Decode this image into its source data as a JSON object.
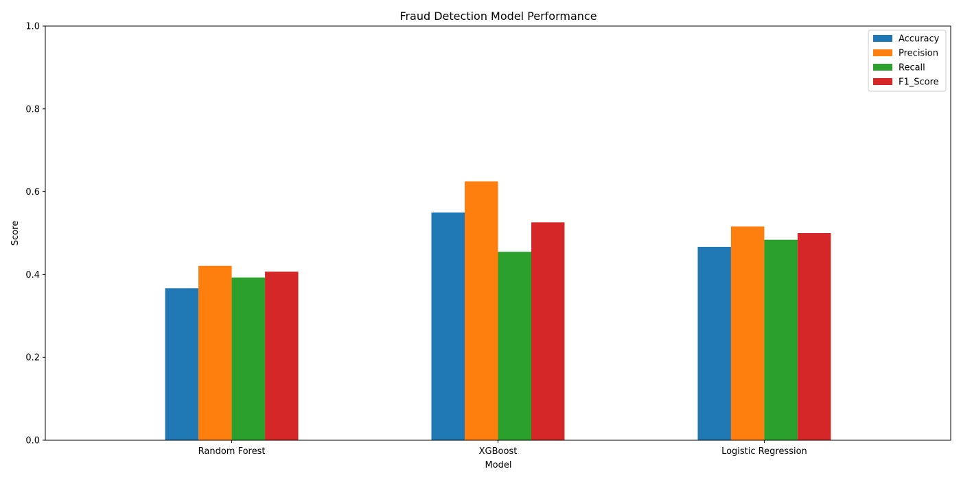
{
  "chart_data": {
    "type": "bar",
    "title": "Fraud Detection Model Performance",
    "xlabel": "Model",
    "ylabel": "Score",
    "categories": [
      "Random Forest",
      "XGBoost",
      "Logistic Regression"
    ],
    "series": [
      {
        "name": "Accuracy",
        "color": "#1f77b4",
        "values": [
          0.367,
          0.55,
          0.467
        ]
      },
      {
        "name": "Precision",
        "color": "#ff7f0e",
        "values": [
          0.421,
          0.625,
          0.516
        ]
      },
      {
        "name": "Recall",
        "color": "#2ca02c",
        "values": [
          0.393,
          0.455,
          0.484
        ]
      },
      {
        "name": "F1_Score",
        "color": "#d62728",
        "values": [
          0.407,
          0.526,
          0.5
        ]
      }
    ],
    "ylim": [
      0,
      1.0
    ],
    "yticks": [
      "0.0",
      "0.2",
      "0.4",
      "0.6",
      "0.8",
      "1.0"
    ],
    "ytick_values": [
      0,
      0.2,
      0.4,
      0.6,
      0.8,
      1.0
    ],
    "grid": false,
    "legend_position": "top-right"
  }
}
